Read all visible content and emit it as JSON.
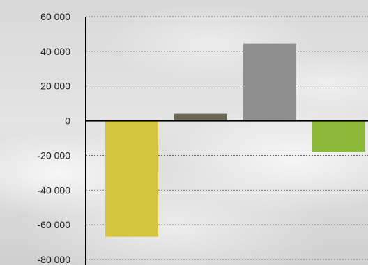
{
  "chart_data": {
    "type": "bar",
    "title": "",
    "xlabel": "",
    "ylabel": "",
    "ylim": [
      -80000,
      60000
    ],
    "yticks": [
      60000,
      40000,
      20000,
      0,
      -20000,
      -40000,
      -60000,
      -80000
    ],
    "ytick_labels": [
      "60 000",
      "40 000",
      "20 000",
      "0",
      "-20 000",
      "-40 000",
      "-60 000",
      "-80 000"
    ],
    "grid": true,
    "legend": "none",
    "values": [
      -67000,
      4000,
      44500,
      -18000
    ],
    "colors": [
      "#d4c53e",
      "#6b6656",
      "#8e8e8e",
      "#8cb93a"
    ]
  }
}
